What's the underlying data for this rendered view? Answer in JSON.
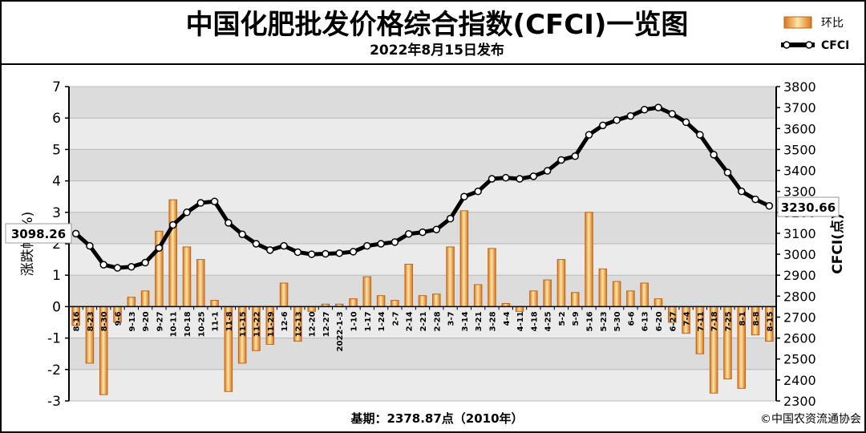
{
  "chart_data": {
    "type": "bar+line",
    "title": "中国化肥批发价格综合指数(CFCI)一览图",
    "subtitle": "2022年8月15日发布",
    "legend": [
      {
        "name": "环比",
        "kind": "bar",
        "color": "#f0c060"
      },
      {
        "name": "CFCI",
        "kind": "line",
        "color": "#000000"
      }
    ],
    "legend_placement": "top-right",
    "y_left": {
      "label": "涨跌幅(%)",
      "ylim": [
        -3,
        7
      ],
      "ticks": [
        "-3",
        "-2",
        "-1",
        "0",
        "1",
        "2",
        "3",
        "4",
        "5",
        "6",
        "7"
      ]
    },
    "y_right": {
      "label": "CFCI(点)",
      "ylim": [
        2300,
        3800
      ],
      "ticks": [
        "2300",
        "2400",
        "2500",
        "2600",
        "2700",
        "2800",
        "2900",
        "3000",
        "3100",
        "3200",
        "3300",
        "3400",
        "3500",
        "3600",
        "3700",
        "3800"
      ]
    },
    "categories": [
      "8-16",
      "8-23",
      "8-30",
      "9-6",
      "9-13",
      "9-20",
      "9-27",
      "10-11",
      "10-18",
      "10-25",
      "11-1",
      "11-8",
      "11-15",
      "11-22",
      "11-29",
      "12-6",
      "12-13",
      "12-20",
      "12-27",
      "2022-1-3",
      "1-10",
      "1-17",
      "1-24",
      "2-7",
      "2-14",
      "2-21",
      "2-28",
      "3-7",
      "3-14",
      "3-21",
      "3-28",
      "4-4",
      "4-11",
      "4-18",
      "4-25",
      "5-2",
      "5-9",
      "5-16",
      "5-23",
      "5-30",
      "6-6",
      "6-13",
      "6-20",
      "6-27",
      "7-4",
      "7-11",
      "7-18",
      "7-25",
      "8-1",
      "8-8",
      "8-15"
    ],
    "series": [
      {
        "name": "环比",
        "type": "bar",
        "values": [
          -0.6,
          -1.8,
          -2.8,
          -0.5,
          0.3,
          0.5,
          2.4,
          3.4,
          1.9,
          1.5,
          0.2,
          -2.7,
          -1.8,
          -1.4,
          -1.2,
          0.75,
          -1.1,
          -0.15,
          0.08,
          0.08,
          0.25,
          0.95,
          0.35,
          0.2,
          1.35,
          0.35,
          0.4,
          1.9,
          3.05,
          0.7,
          1.85,
          0.1,
          -0.15,
          0.5,
          0.85,
          1.5,
          0.45,
          3.0,
          1.2,
          0.8,
          0.5,
          0.75,
          0.25,
          -0.5,
          -0.85,
          -1.5,
          -2.75,
          -2.3,
          -2.6,
          -0.9,
          -1.1
        ]
      },
      {
        "name": "CFCI",
        "type": "line",
        "values": [
          3098.26,
          3040,
          2950,
          2935,
          2940,
          2960,
          3030,
          3140,
          3200,
          3245,
          3252,
          3150,
          3095,
          3050,
          3020,
          3040,
          3010,
          3000,
          3002,
          3005,
          3012,
          3040,
          3050,
          3058,
          3097,
          3105,
          3118,
          3170,
          3275,
          3300,
          3360,
          3365,
          3360,
          3372,
          3398,
          3450,
          3468,
          3570,
          3615,
          3640,
          3660,
          3690,
          3700,
          3670,
          3630,
          3570,
          3475,
          3390,
          3300,
          3262,
          3230.66
        ]
      }
    ],
    "annotations": {
      "start_value": "3098.26",
      "end_value": "3230.66"
    },
    "footer": {
      "base": "基期：2378.87点（2010年）",
      "copyright": "©中国农资流通协会"
    }
  }
}
